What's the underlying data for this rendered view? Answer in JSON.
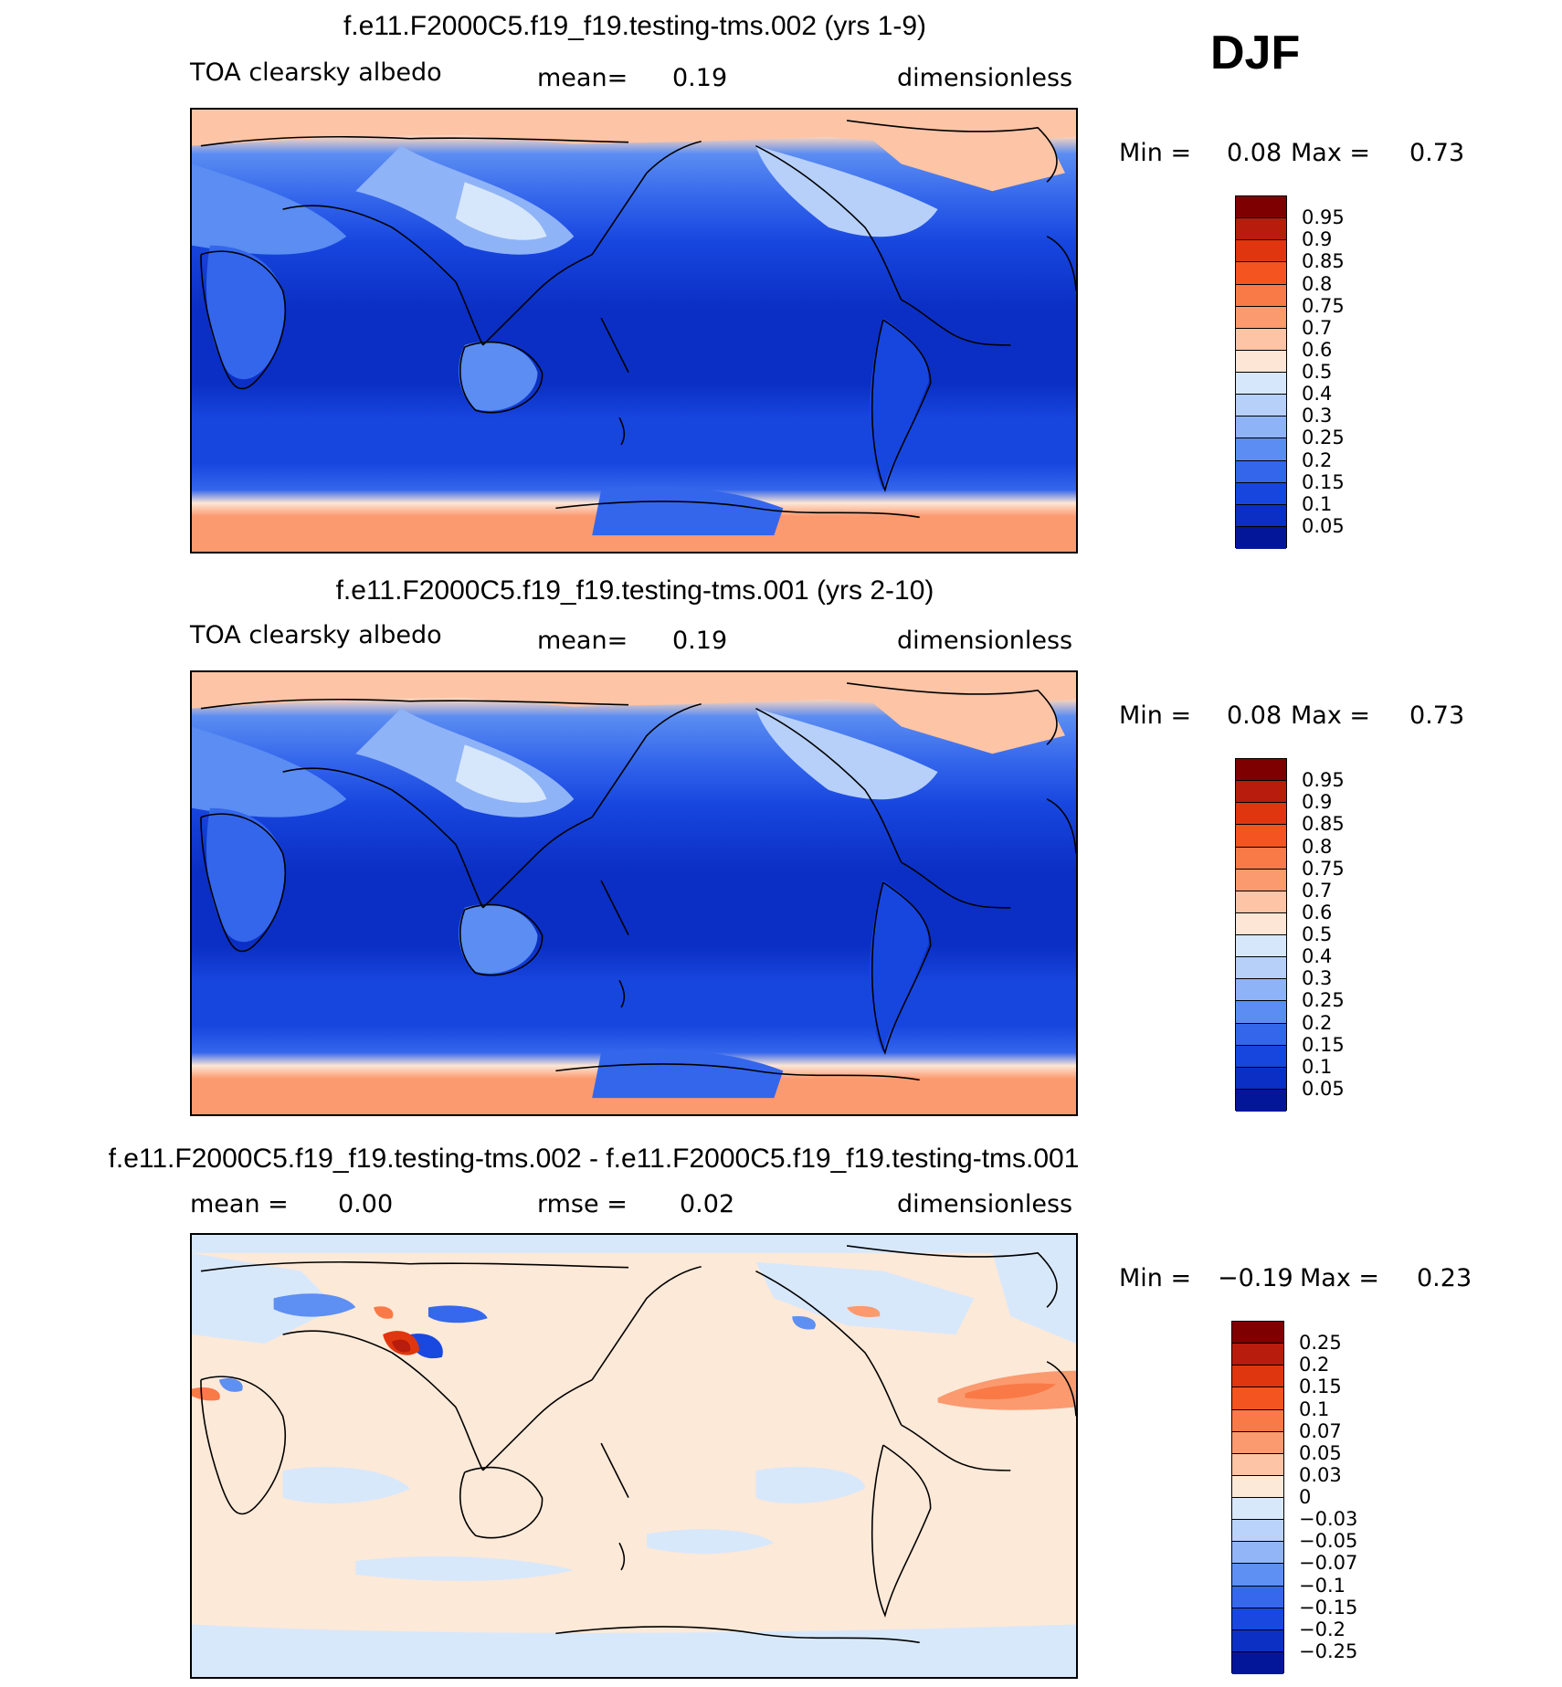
{
  "season": "DJF",
  "panels": [
    {
      "title": "f.e11.F2000C5.f19_f19.testing-tms.002 (yrs 1-9)",
      "left_label": "TOA clearsky albedo",
      "mean_label": "mean=",
      "mean_value": "0.19",
      "units": "dimensionless",
      "min_label": "Min =",
      "min_value": "0.08",
      "max_label": "Max =",
      "max_value": "0.73",
      "colorbar": {
        "levels": [
          "0.95",
          "0.9",
          "0.85",
          "0.8",
          "0.75",
          "0.7",
          "0.6",
          "0.5",
          "0.4",
          "0.3",
          "0.25",
          "0.2",
          "0.15",
          "0.1",
          "0.05"
        ],
        "colors": [
          "#7f0000",
          "#b71c0c",
          "#e0360f",
          "#f4541f",
          "#f97a46",
          "#fb9a6f",
          "#fdc4a6",
          "#fde6d5",
          "#d6e7fb",
          "#b6d0fa",
          "#8fb3f7",
          "#5b8df2",
          "#3466ec",
          "#1746df",
          "#0b2fc4",
          "#03169a"
        ]
      }
    },
    {
      "title": "f.e11.F2000C5.f19_f19.testing-tms.001 (yrs 2-10)",
      "left_label": "TOA clearsky albedo",
      "mean_label": "mean=",
      "mean_value": "0.19",
      "units": "dimensionless",
      "min_label": "Min =",
      "min_value": "0.08",
      "max_label": "Max =",
      "max_value": "0.73",
      "colorbar": {
        "levels": [
          "0.95",
          "0.9",
          "0.85",
          "0.8",
          "0.75",
          "0.7",
          "0.6",
          "0.5",
          "0.4",
          "0.3",
          "0.25",
          "0.2",
          "0.15",
          "0.1",
          "0.05"
        ],
        "colors": [
          "#7f0000",
          "#b71c0c",
          "#e0360f",
          "#f4541f",
          "#f97a46",
          "#fb9a6f",
          "#fdc4a6",
          "#fde6d5",
          "#d6e7fb",
          "#b6d0fa",
          "#8fb3f7",
          "#5b8df2",
          "#3466ec",
          "#1746df",
          "#0b2fc4",
          "#03169a"
        ]
      }
    },
    {
      "title": "f.e11.F2000C5.f19_f19.testing-tms.002 - f.e11.F2000C5.f19_f19.testing-tms.001",
      "mean_label": "mean =",
      "mean_value": "0.00",
      "rmse_label": "rmse =",
      "rmse_value": "0.02",
      "units": "dimensionless",
      "min_label": "Min =",
      "min_value": "−0.19",
      "max_label": "Max =",
      "max_value": "0.23",
      "colorbar": {
        "levels": [
          "0.25",
          "0.2",
          "0.15",
          "0.1",
          "0.07",
          "0.05",
          "0.03",
          "0",
          "−0.03",
          "−0.05",
          "−0.07",
          "−0.1",
          "−0.15",
          "−0.2",
          "−0.25"
        ],
        "colors": [
          "#7f0000",
          "#b71c0c",
          "#e0360f",
          "#f4541f",
          "#f97a46",
          "#fb9a6f",
          "#fdc4a6",
          "#fde9d8",
          "#d8e8fb",
          "#bad3fa",
          "#92b5f7",
          "#5e8ff2",
          "#3568ec",
          "#1848df",
          "#0c30c4",
          "#03169a"
        ]
      }
    }
  ]
}
